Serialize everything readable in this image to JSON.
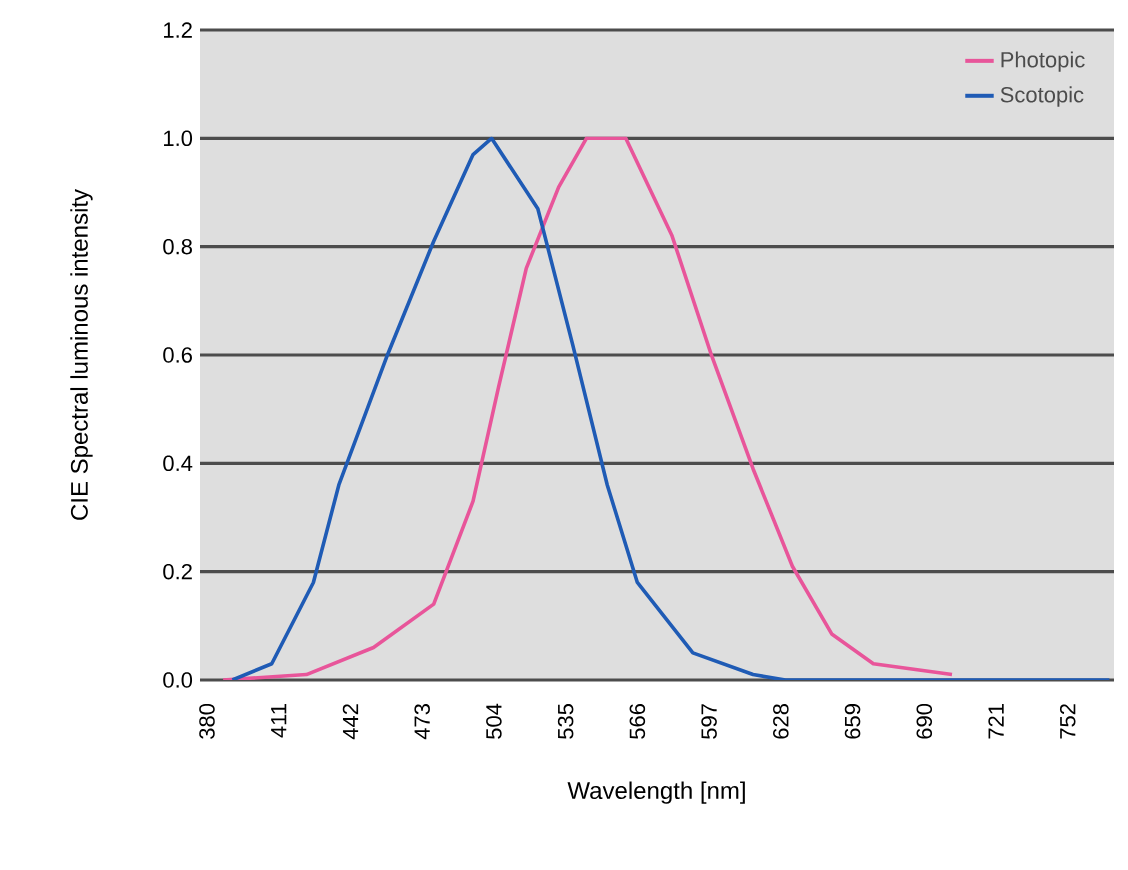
{
  "chart_data": {
    "type": "line",
    "xlabel": "Wavelength [nm]",
    "ylabel": "CIE Spectral luminous intensity",
    "xlim": [
      377,
      772
    ],
    "ylim": [
      0,
      1.2
    ],
    "xticks": [
      380,
      411,
      442,
      473,
      504,
      535,
      566,
      597,
      628,
      659,
      690,
      721,
      752
    ],
    "yticks": [
      {
        "value": 0,
        "label": "0.0"
      },
      {
        "value": 0.2,
        "label": "0.2"
      },
      {
        "value": 0.4,
        "label": "0.4"
      },
      {
        "value": 0.6,
        "label": "0.6"
      },
      {
        "value": 0.8,
        "label": "0.8"
      },
      {
        "value": 1.0,
        "label": "1.0"
      },
      {
        "value": 1.2,
        "label": "1.2"
      }
    ],
    "grid": "y",
    "legend": "top right",
    "marker": "none",
    "line_style": "solid",
    "series": [
      {
        "name": "Photopic",
        "color": "#e8559a",
        "x": [
          387,
          423,
          452,
          478,
          495,
          506,
          518,
          532,
          544,
          561,
          581,
          598,
          616,
          633,
          650,
          668,
          702
        ],
        "values": [
          0,
          0.01,
          0.06,
          0.14,
          0.33,
          0.54,
          0.76,
          0.91,
          1.0,
          1.0,
          0.82,
          0.6,
          0.39,
          0.21,
          0.085,
          0.03,
          0.01
        ]
      },
      {
        "name": "Scotopic",
        "color": "#1f5bb5",
        "x": [
          391,
          408,
          426,
          437,
          458,
          478,
          495,
          503,
          523,
          538,
          553,
          566,
          590,
          616,
          630,
          770
        ],
        "values": [
          0,
          0.03,
          0.18,
          0.36,
          0.6,
          0.81,
          0.97,
          1.0,
          0.87,
          0.62,
          0.36,
          0.18,
          0.05,
          0.01,
          0,
          0
        ]
      }
    ]
  }
}
